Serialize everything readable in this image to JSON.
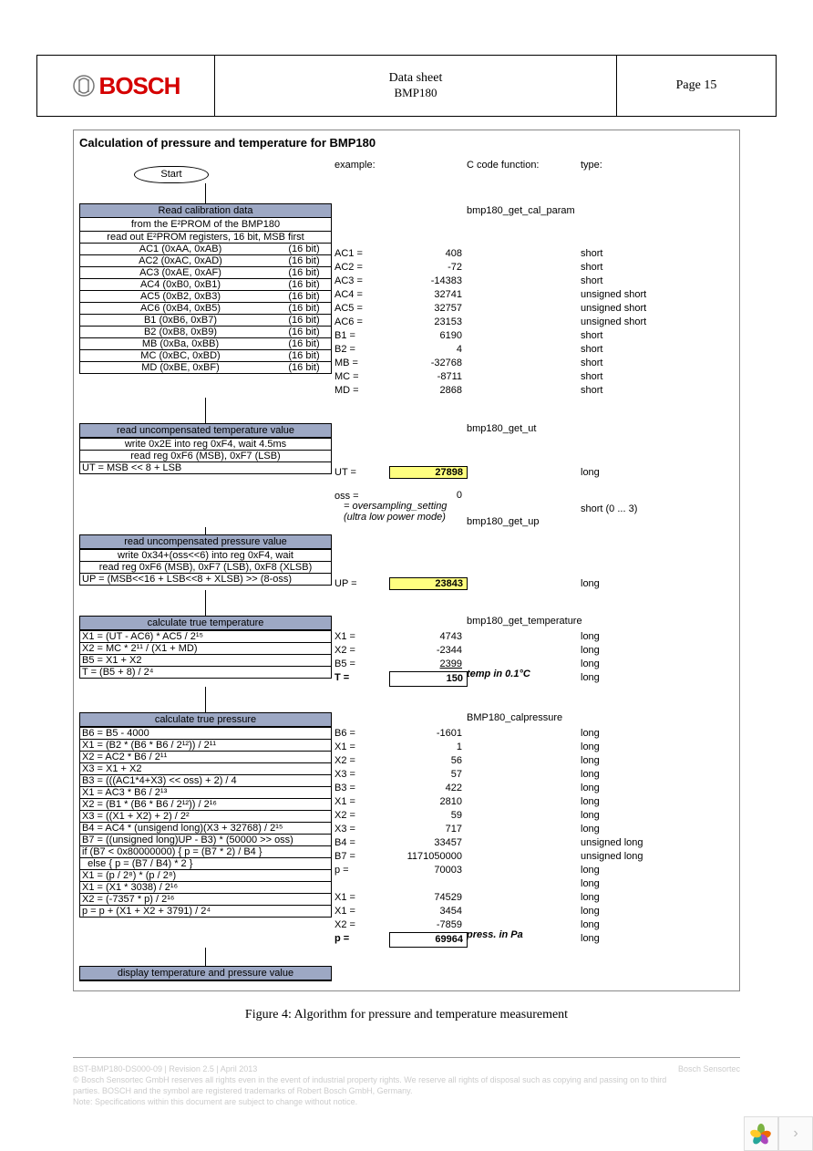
{
  "header": {
    "logo_text": "BOSCH",
    "center_top": "Data sheet",
    "center_bot": "BMP180",
    "page": "Page 15"
  },
  "diag_title": "Calculation of pressure and temperature for BMP180",
  "start": "Start",
  "col_hdrs": {
    "example": "example:",
    "cfunc": "C code function:",
    "type": "type:"
  },
  "sec1": {
    "hdr": "Read calibration data",
    "sub": "from the E²PROM of the BMP180",
    "sub2": "read out E²PROM registers, 16 bit, MSB first",
    "func": "bmp180_get_cal_param",
    "rows": [
      {
        "l": "AC1 (0xAA, 0xAB)",
        "b": "(16 bit)",
        "k": "AC1 =",
        "v": "408",
        "t": "short"
      },
      {
        "l": "AC2 (0xAC, 0xAD)",
        "b": "(16 bit)",
        "k": "AC2 =",
        "v": "-72",
        "t": "short"
      },
      {
        "l": "AC3 (0xAE, 0xAF)",
        "b": "(16 bit)",
        "k": "AC3 =",
        "v": "-14383",
        "t": "short"
      },
      {
        "l": "AC4 (0xB0, 0xB1)",
        "b": "(16 bit)",
        "k": "AC4 =",
        "v": "32741",
        "t": "unsigned short"
      },
      {
        "l": "AC5 (0xB2, 0xB3)",
        "b": "(16 bit)",
        "k": "AC5 =",
        "v": "32757",
        "t": "unsigned short"
      },
      {
        "l": "AC6 (0xB4, 0xB5)",
        "b": "(16 bit)",
        "k": "AC6 =",
        "v": "23153",
        "t": "unsigned short"
      },
      {
        "l": "B1 (0xB6, 0xB7)",
        "b": "(16 bit)",
        "k": "B1 =",
        "v": "6190",
        "t": "short"
      },
      {
        "l": "B2 (0xB8, 0xB9)",
        "b": "(16 bit)",
        "k": "B2 =",
        "v": "4",
        "t": "short"
      },
      {
        "l": "MB (0xBa, 0xBB)",
        "b": "(16 bit)",
        "k": "MB =",
        "v": "-32768",
        "t": "short"
      },
      {
        "l": "MC (0xBC, 0xBD)",
        "b": "(16 bit)",
        "k": "MC =",
        "v": "-8711",
        "t": "short"
      },
      {
        "l": "MD (0xBE, 0xBF)",
        "b": "(16 bit)",
        "k": "MD =",
        "v": "2868",
        "t": "short"
      }
    ]
  },
  "sec2": {
    "hdr": "read uncompensated temperature value",
    "r1": "write 0x2E into reg 0xF4, wait 4.5ms",
    "r2": "read reg 0xF6 (MSB), 0xF7 (LSB)",
    "r3": "UT = MSB << 8 + LSB",
    "func": "bmp180_get_ut",
    "ut_k": "UT =",
    "ut_v": "27898",
    "ut_t": "long",
    "oss_k": "oss =",
    "oss_v": "0",
    "oss_note": "= oversampling_setting",
    "oss_t": "short (0 ... 3)",
    "oss_mode": "(ultra low power mode)"
  },
  "sec3": {
    "hdr": "read uncompensated pressure value",
    "r1": "write 0x34+(oss<<6) into reg 0xF4, wait",
    "r2": "read reg 0xF6 (MSB), 0xF7 (LSB), 0xF8 (XLSB)",
    "r3": "UP = (MSB<<16 + LSB<<8 + XLSB) >> (8-oss)",
    "func": "bmp180_get_up",
    "up_k": "UP =",
    "up_v": "23843",
    "up_t": "long"
  },
  "sec4": {
    "hdr": "calculate true temperature",
    "func": "bmp180_get_temperature",
    "rows": [
      {
        "l": "X1 = (UT - AC6) * AC5 / 2¹⁵",
        "k": "X1 =",
        "v": "4743",
        "t": "long"
      },
      {
        "l": "X2 = MC * 2¹¹ / (X1 + MD)",
        "k": "X2 =",
        "v": "-2344",
        "t": "long"
      },
      {
        "l": "B5 = X1 + X2",
        "k": "B5 =",
        "v": "2399",
        "t": "long",
        "u": true
      },
      {
        "l": "T = (B5 + 8) / 2⁴",
        "k": "T =",
        "v": "150",
        "t": "long",
        "box": true,
        "note": "temp in 0.1°C",
        "bold": true
      }
    ]
  },
  "sec5": {
    "hdr": "calculate true pressure",
    "func": "BMP180_calpressure",
    "rows": [
      {
        "l": "B6 = B5 - 4000",
        "k": "B6 =",
        "v": "-1601",
        "t": "long"
      },
      {
        "l": "X1 = (B2 * (B6 * B6 / 2¹²)) / 2¹¹",
        "k": "X1 =",
        "v": "1",
        "t": "long"
      },
      {
        "l": "X2 = AC2 * B6 / 2¹¹",
        "k": "X2 =",
        "v": "56",
        "t": "long"
      },
      {
        "l": "X3 = X1 + X2",
        "k": "X3 =",
        "v": "57",
        "t": "long"
      },
      {
        "l": "B3 = (((AC1*4+X3) << oss) + 2) / 4",
        "k": "B3 =",
        "v": "422",
        "t": "long"
      },
      {
        "l": "X1 = AC3 * B6 / 2¹³",
        "k": "X1 =",
        "v": "2810",
        "t": "long"
      },
      {
        "l": "X2 = (B1 * (B6 * B6 / 2¹²)) / 2¹⁶",
        "k": "X2 =",
        "v": "59",
        "t": "long"
      },
      {
        "l": "X3 = ((X1 + X2) + 2) / 2²",
        "k": "X3 =",
        "v": "717",
        "t": "long"
      },
      {
        "l": "B4 = AC4 * (unsigend long)(X3 + 32768) / 2¹⁵",
        "k": "B4 =",
        "v": "33457",
        "t": "unsigned long"
      },
      {
        "l": "B7 = ((unsigned long)UP - B3) * (50000 >> oss)",
        "k": "B7 =",
        "v": "1171050000",
        "t": "unsigned long"
      },
      {
        "l": "if (B7 < 0x80000000) { p = (B7 * 2) / B4 }",
        "k": "p =",
        "v": "70003",
        "t": "long"
      },
      {
        "l": "  else { p = (B7 / B4) * 2 }",
        "k": "",
        "v": "",
        "t": "long"
      },
      {
        "l": "X1 = (p / 2⁸) * (p / 2⁸)",
        "k": "X1 =",
        "v": "74529",
        "t": "long"
      },
      {
        "l": "X1 = (X1 * 3038) / 2¹⁶",
        "k": "X1 =",
        "v": "3454",
        "t": "long"
      },
      {
        "l": "X2 = (-7357 * p) / 2¹⁶",
        "k": "X2 =",
        "v": "-7859",
        "t": "long"
      },
      {
        "l": "p = p + (X1 + X2 + 3791) / 2⁴",
        "k": "p =",
        "v": "69964",
        "t": "long",
        "box": true,
        "note": "press. in Pa",
        "bold": true
      }
    ]
  },
  "sec6": {
    "hdr": "display temperature and pressure value"
  },
  "caption": "Figure 4: Algorithm for pressure and temperature measurement",
  "footer": {
    "left": "BST-BMP180-DS000-09 | Revision 2.5 | April 2013",
    "right": "Bosch Sensortec",
    "l1": "© Bosch Sensortec GmbH reserves all rights even in the event of industrial property rights. We reserve all rights of disposal such as copying and passing on to third",
    "l2": "parties. BOSCH and the symbol are registered trademarks of Robert Bosch GmbH, Germany.",
    "l3": "Note: Specifications within this document are subject to change without notice."
  }
}
